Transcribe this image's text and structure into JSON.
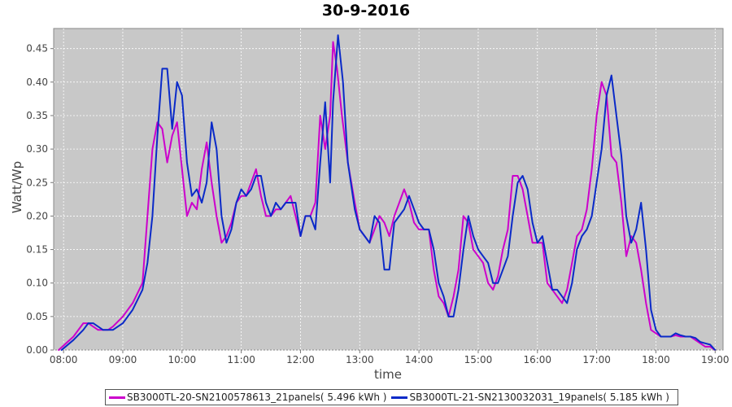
{
  "chart_data": {
    "type": "line",
    "title": "30-9-2016",
    "xlabel": "time",
    "ylabel": "Watt/Wp",
    "xlim": [
      "07:50",
      "19:08"
    ],
    "ylim": [
      0,
      0.48
    ],
    "x_ticks": [
      "08:00",
      "09:00",
      "10:00",
      "11:00",
      "12:00",
      "13:00",
      "14:00",
      "15:00",
      "16:00",
      "17:00",
      "18:00",
      "19:00"
    ],
    "y_ticks": [
      "0.00",
      "0.05",
      "0.10",
      "0.15",
      "0.20",
      "0.25",
      "0.30",
      "0.35",
      "0.40",
      "0.45"
    ],
    "grid": true,
    "background_color": "#c8c8c8",
    "legend_position": "bottom",
    "series": [
      {
        "name": "SB3000TL-20-SN2100578613_21panels( 5.496 kWh )",
        "color": "#cc00cc",
        "points": [
          [
            "07:55",
            0.0
          ],
          [
            "08:10",
            0.02
          ],
          [
            "08:20",
            0.04
          ],
          [
            "08:25",
            0.04
          ],
          [
            "08:35",
            0.03
          ],
          [
            "08:45",
            0.03
          ],
          [
            "08:50",
            0.035
          ],
          [
            "09:00",
            0.05
          ],
          [
            "09:10",
            0.07
          ],
          [
            "09:20",
            0.1
          ],
          [
            "09:25",
            0.2
          ],
          [
            "09:30",
            0.3
          ],
          [
            "09:35",
            0.34
          ],
          [
            "09:40",
            0.33
          ],
          [
            "09:45",
            0.28
          ],
          [
            "09:50",
            0.32
          ],
          [
            "09:55",
            0.34
          ],
          [
            "10:00",
            0.27
          ],
          [
            "10:05",
            0.2
          ],
          [
            "10:10",
            0.22
          ],
          [
            "10:15",
            0.21
          ],
          [
            "10:20",
            0.27
          ],
          [
            "10:25",
            0.31
          ],
          [
            "10:30",
            0.25
          ],
          [
            "10:35",
            0.2
          ],
          [
            "10:40",
            0.16
          ],
          [
            "10:45",
            0.17
          ],
          [
            "10:50",
            0.19
          ],
          [
            "10:55",
            0.22
          ],
          [
            "11:00",
            0.23
          ],
          [
            "11:05",
            0.23
          ],
          [
            "11:10",
            0.25
          ],
          [
            "11:15",
            0.27
          ],
          [
            "11:20",
            0.23
          ],
          [
            "11:25",
            0.2
          ],
          [
            "11:30",
            0.2
          ],
          [
            "11:35",
            0.21
          ],
          [
            "11:40",
            0.21
          ],
          [
            "11:45",
            0.22
          ],
          [
            "11:50",
            0.23
          ],
          [
            "11:55",
            0.2
          ],
          [
            "12:00",
            0.17
          ],
          [
            "12:05",
            0.2
          ],
          [
            "12:10",
            0.2
          ],
          [
            "12:15",
            0.22
          ],
          [
            "12:20",
            0.35
          ],
          [
            "12:25",
            0.3
          ],
          [
            "12:30",
            0.35
          ],
          [
            "12:33",
            0.46
          ],
          [
            "12:37",
            0.42
          ],
          [
            "12:42",
            0.35
          ],
          [
            "12:48",
            0.28
          ],
          [
            "12:55",
            0.22
          ],
          [
            "13:00",
            0.18
          ],
          [
            "13:05",
            0.17
          ],
          [
            "13:10",
            0.16
          ],
          [
            "13:15",
            0.18
          ],
          [
            "13:20",
            0.2
          ],
          [
            "13:25",
            0.19
          ],
          [
            "13:30",
            0.17
          ],
          [
            "13:35",
            0.2
          ],
          [
            "13:40",
            0.22
          ],
          [
            "13:45",
            0.24
          ],
          [
            "13:50",
            0.22
          ],
          [
            "13:55",
            0.19
          ],
          [
            "14:00",
            0.18
          ],
          [
            "14:05",
            0.18
          ],
          [
            "14:10",
            0.18
          ],
          [
            "14:15",
            0.12
          ],
          [
            "14:20",
            0.08
          ],
          [
            "14:25",
            0.07
          ],
          [
            "14:30",
            0.05
          ],
          [
            "14:35",
            0.08
          ],
          [
            "14:40",
            0.12
          ],
          [
            "14:45",
            0.2
          ],
          [
            "14:50",
            0.19
          ],
          [
            "14:55",
            0.15
          ],
          [
            "15:00",
            0.14
          ],
          [
            "15:05",
            0.13
          ],
          [
            "15:10",
            0.1
          ],
          [
            "15:15",
            0.09
          ],
          [
            "15:20",
            0.11
          ],
          [
            "15:25",
            0.15
          ],
          [
            "15:30",
            0.18
          ],
          [
            "15:35",
            0.26
          ],
          [
            "15:40",
            0.26
          ],
          [
            "15:45",
            0.24
          ],
          [
            "15:50",
            0.2
          ],
          [
            "15:55",
            0.16
          ],
          [
            "16:00",
            0.16
          ],
          [
            "16:05",
            0.16
          ],
          [
            "16:10",
            0.1
          ],
          [
            "16:15",
            0.09
          ],
          [
            "16:20",
            0.08
          ],
          [
            "16:25",
            0.07
          ],
          [
            "16:30",
            0.09
          ],
          [
            "16:35",
            0.13
          ],
          [
            "16:40",
            0.17
          ],
          [
            "16:45",
            0.18
          ],
          [
            "16:50",
            0.21
          ],
          [
            "16:55",
            0.27
          ],
          [
            "17:00",
            0.35
          ],
          [
            "17:05",
            0.4
          ],
          [
            "17:10",
            0.38
          ],
          [
            "17:15",
            0.29
          ],
          [
            "17:20",
            0.28
          ],
          [
            "17:25",
            0.22
          ],
          [
            "17:30",
            0.14
          ],
          [
            "17:35",
            0.17
          ],
          [
            "17:40",
            0.16
          ],
          [
            "17:45",
            0.12
          ],
          [
            "17:50",
            0.07
          ],
          [
            "17:55",
            0.03
          ],
          [
            "18:00",
            0.025
          ],
          [
            "18:05",
            0.02
          ],
          [
            "18:10",
            0.02
          ],
          [
            "18:15",
            0.02
          ],
          [
            "18:20",
            0.022
          ],
          [
            "18:25",
            0.02
          ],
          [
            "18:30",
            0.02
          ],
          [
            "18:35",
            0.02
          ],
          [
            "18:40",
            0.015
          ],
          [
            "18:45",
            0.01
          ],
          [
            "18:50",
            0.005
          ],
          [
            "18:55",
            0.005
          ],
          [
            "19:00",
            0.0
          ]
        ]
      },
      {
        "name": "SB3000TL-21-SN2130032031_19panels( 5.185 kWh )",
        "color": "#0a2ac8",
        "points": [
          [
            "07:58",
            0.0
          ],
          [
            "08:10",
            0.015
          ],
          [
            "08:20",
            0.03
          ],
          [
            "08:25",
            0.04
          ],
          [
            "08:30",
            0.04
          ],
          [
            "08:40",
            0.03
          ],
          [
            "08:50",
            0.03
          ],
          [
            "09:00",
            0.04
          ],
          [
            "09:10",
            0.06
          ],
          [
            "09:20",
            0.09
          ],
          [
            "09:25",
            0.13
          ],
          [
            "09:30",
            0.2
          ],
          [
            "09:35",
            0.32
          ],
          [
            "09:40",
            0.42
          ],
          [
            "09:45",
            0.42
          ],
          [
            "09:50",
            0.33
          ],
          [
            "09:55",
            0.4
          ],
          [
            "10:00",
            0.38
          ],
          [
            "10:05",
            0.28
          ],
          [
            "10:10",
            0.23
          ],
          [
            "10:15",
            0.24
          ],
          [
            "10:20",
            0.22
          ],
          [
            "10:25",
            0.25
          ],
          [
            "10:30",
            0.34
          ],
          [
            "10:35",
            0.3
          ],
          [
            "10:40",
            0.2
          ],
          [
            "10:45",
            0.16
          ],
          [
            "10:50",
            0.18
          ],
          [
            "10:55",
            0.22
          ],
          [
            "11:00",
            0.24
          ],
          [
            "11:05",
            0.23
          ],
          [
            "11:10",
            0.24
          ],
          [
            "11:15",
            0.26
          ],
          [
            "11:20",
            0.26
          ],
          [
            "11:25",
            0.22
          ],
          [
            "11:30",
            0.2
          ],
          [
            "11:35",
            0.22
          ],
          [
            "11:40",
            0.21
          ],
          [
            "11:45",
            0.22
          ],
          [
            "11:50",
            0.22
          ],
          [
            "11:55",
            0.22
          ],
          [
            "12:00",
            0.17
          ],
          [
            "12:05",
            0.2
          ],
          [
            "12:10",
            0.2
          ],
          [
            "12:15",
            0.18
          ],
          [
            "12:20",
            0.28
          ],
          [
            "12:25",
            0.37
          ],
          [
            "12:30",
            0.25
          ],
          [
            "12:33",
            0.37
          ],
          [
            "12:38",
            0.47
          ],
          [
            "12:43",
            0.4
          ],
          [
            "12:48",
            0.28
          ],
          [
            "12:55",
            0.21
          ],
          [
            "13:00",
            0.18
          ],
          [
            "13:05",
            0.17
          ],
          [
            "13:10",
            0.16
          ],
          [
            "13:15",
            0.2
          ],
          [
            "13:20",
            0.19
          ],
          [
            "13:25",
            0.12
          ],
          [
            "13:30",
            0.12
          ],
          [
            "13:35",
            0.19
          ],
          [
            "13:40",
            0.2
          ],
          [
            "13:45",
            0.21
          ],
          [
            "13:50",
            0.23
          ],
          [
            "13:55",
            0.21
          ],
          [
            "14:00",
            0.19
          ],
          [
            "14:05",
            0.18
          ],
          [
            "14:10",
            0.18
          ],
          [
            "14:15",
            0.15
          ],
          [
            "14:20",
            0.1
          ],
          [
            "14:25",
            0.08
          ],
          [
            "14:30",
            0.05
          ],
          [
            "14:35",
            0.05
          ],
          [
            "14:40",
            0.09
          ],
          [
            "14:45",
            0.15
          ],
          [
            "14:50",
            0.2
          ],
          [
            "14:55",
            0.17
          ],
          [
            "15:00",
            0.15
          ],
          [
            "15:05",
            0.14
          ],
          [
            "15:10",
            0.13
          ],
          [
            "15:15",
            0.1
          ],
          [
            "15:20",
            0.1
          ],
          [
            "15:25",
            0.12
          ],
          [
            "15:30",
            0.14
          ],
          [
            "15:35",
            0.2
          ],
          [
            "15:40",
            0.25
          ],
          [
            "15:45",
            0.26
          ],
          [
            "15:50",
            0.24
          ],
          [
            "15:55",
            0.19
          ],
          [
            "16:00",
            0.16
          ],
          [
            "16:05",
            0.17
          ],
          [
            "16:10",
            0.13
          ],
          [
            "16:15",
            0.09
          ],
          [
            "16:20",
            0.09
          ],
          [
            "16:25",
            0.08
          ],
          [
            "16:30",
            0.07
          ],
          [
            "16:35",
            0.1
          ],
          [
            "16:40",
            0.15
          ],
          [
            "16:45",
            0.17
          ],
          [
            "16:50",
            0.18
          ],
          [
            "16:55",
            0.2
          ],
          [
            "17:00",
            0.25
          ],
          [
            "17:05",
            0.3
          ],
          [
            "17:10",
            0.38
          ],
          [
            "17:15",
            0.41
          ],
          [
            "17:20",
            0.35
          ],
          [
            "17:25",
            0.29
          ],
          [
            "17:30",
            0.2
          ],
          [
            "17:35",
            0.16
          ],
          [
            "17:40",
            0.18
          ],
          [
            "17:45",
            0.22
          ],
          [
            "17:50",
            0.15
          ],
          [
            "17:55",
            0.06
          ],
          [
            "18:00",
            0.03
          ],
          [
            "18:05",
            0.02
          ],
          [
            "18:10",
            0.02
          ],
          [
            "18:15",
            0.02
          ],
          [
            "18:20",
            0.025
          ],
          [
            "18:25",
            0.022
          ],
          [
            "18:30",
            0.02
          ],
          [
            "18:35",
            0.02
          ],
          [
            "18:40",
            0.018
          ],
          [
            "18:45",
            0.012
          ],
          [
            "18:50",
            0.01
          ],
          [
            "18:55",
            0.008
          ],
          [
            "19:00",
            0.0
          ]
        ]
      }
    ]
  }
}
